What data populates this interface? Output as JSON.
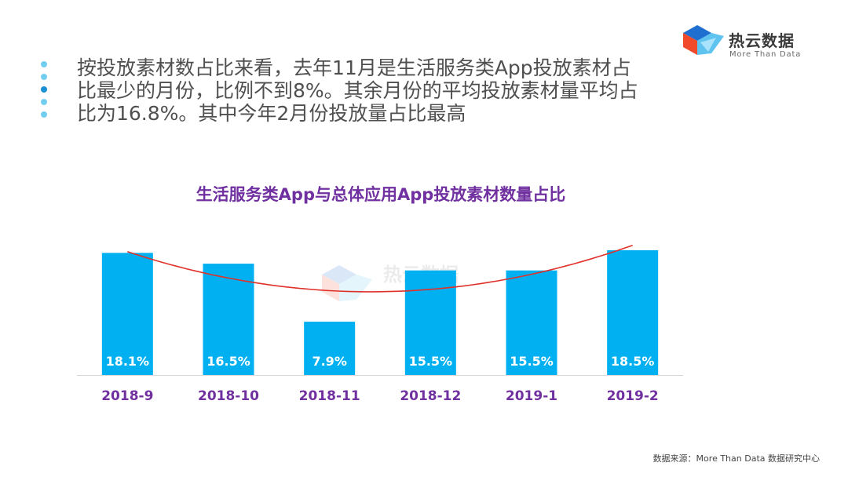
{
  "logo": {
    "name": "热云数据",
    "tagline": "More Than Data",
    "icon": "hexagon-cube-logo"
  },
  "bullets": {
    "count": 5,
    "text": "按投放素材数占比来看，去年11月是生活服务类App投放素材占比最少的月份，比例不到8%。其余月份的平均投放素材量平均占比为16.8%。其中今年2月份投放量占比最高"
  },
  "colors": {
    "bar": "#00b0f0",
    "trend": "#e0302a",
    "title": "#7030a0",
    "tick": "#7030a0",
    "bullet": "#74cdee",
    "bullet_active": "#1b8fd3"
  },
  "chart_data": {
    "type": "bar",
    "title": "生活服务类App与总体应用App投放素材数量占比",
    "categories": [
      "2018-9",
      "2018-10",
      "2018-11",
      "2018-12",
      "2019-1",
      "2019-2"
    ],
    "values": [
      18.1,
      16.5,
      7.9,
      15.5,
      15.5,
      18.5
    ],
    "data_labels": [
      "18.1%",
      "16.5%",
      "7.9%",
      "15.5%",
      "15.5%",
      "18.5%"
    ],
    "trendline": "polynomial",
    "ylim": [
      0,
      20
    ],
    "xlabel": "",
    "ylabel": "",
    "grid": false,
    "watermark": "热云数据"
  },
  "footer": {
    "source": "数据来源：More Than Data 数据研究中心"
  }
}
